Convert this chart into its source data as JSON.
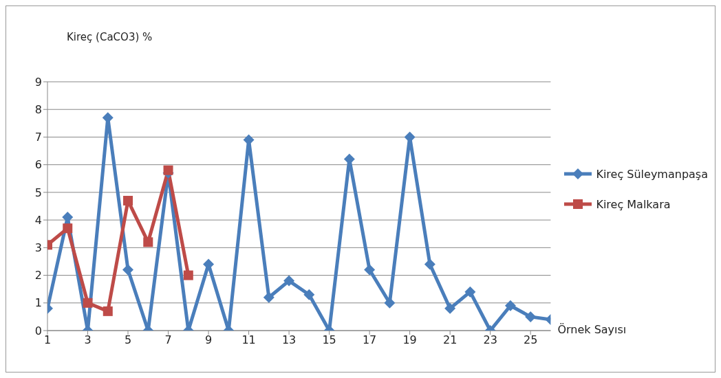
{
  "chart_data": {
    "type": "line",
    "ylabel": "Kireç (CaCO3) %",
    "xlabel": "Örnek Sayısı",
    "x": [
      1,
      2,
      3,
      4,
      5,
      6,
      7,
      8,
      9,
      10,
      11,
      12,
      13,
      14,
      15,
      16,
      17,
      18,
      19,
      20,
      21,
      22,
      23,
      24,
      25,
      26
    ],
    "xlim": [
      1,
      26
    ],
    "xticks": [
      1,
      3,
      5,
      7,
      9,
      11,
      13,
      15,
      17,
      19,
      21,
      23,
      25
    ],
    "series": [
      {
        "name": "Kireç Süleymanpaşa",
        "color": "#4a7ebb",
        "marker": "diamond",
        "values": [
          0.8,
          4.1,
          0,
          7.7,
          2.2,
          0,
          5.7,
          0,
          2.4,
          0,
          6.9,
          1.2,
          1.8,
          1.3,
          0,
          6.2,
          2.2,
          1.0,
          7.0,
          2.4,
          0.8,
          1.4,
          0,
          0.9,
          0.5,
          0.4
        ]
      },
      {
        "name": "Kireç Malkara",
        "color": "#be4b48",
        "marker": "square",
        "values": [
          3.1,
          3.7,
          1.0,
          0.7,
          4.7,
          3.2,
          5.8,
          2.0,
          null,
          null,
          null,
          null,
          null,
          null,
          null,
          null,
          null,
          null,
          null,
          null,
          null,
          null,
          null,
          null,
          null,
          null
        ]
      }
    ],
    "ylim": [
      0,
      9
    ],
    "yticks": [
      0,
      1,
      2,
      3,
      4,
      5,
      6,
      7,
      8,
      9
    ],
    "grid": "y",
    "legend": "right"
  }
}
